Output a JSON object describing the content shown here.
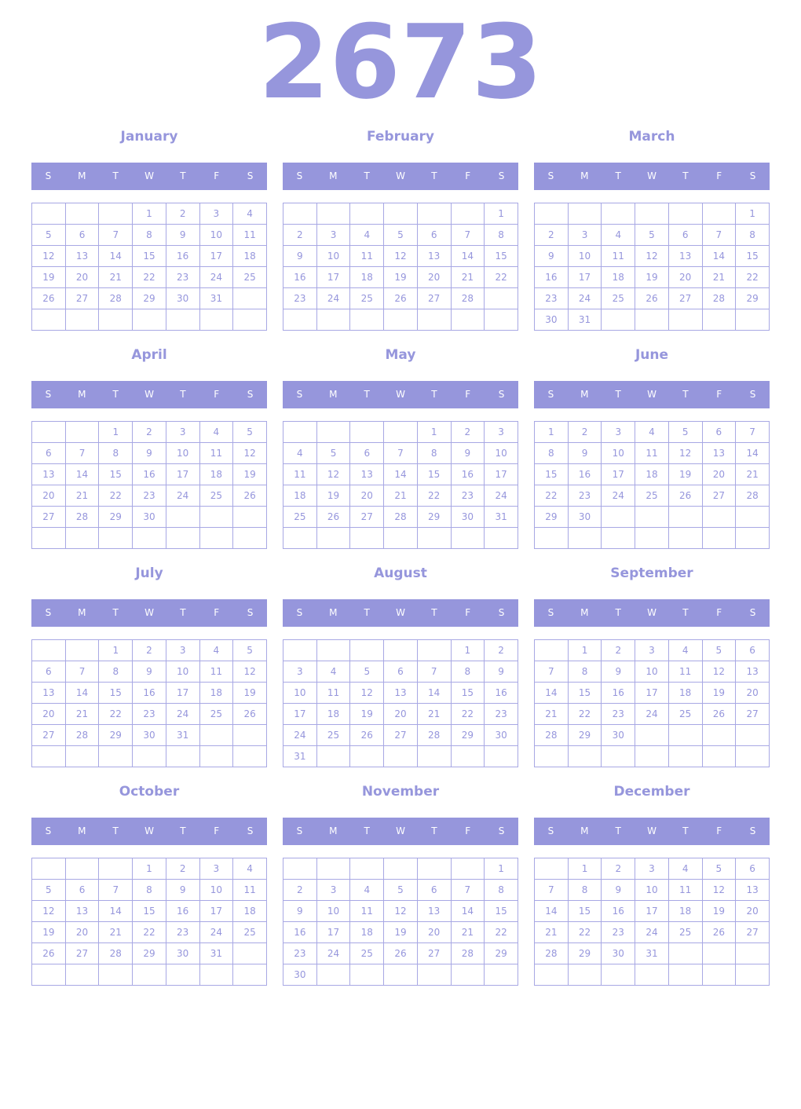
{
  "year": "2673",
  "weekdays": [
    "S",
    "M",
    "T",
    "W",
    "T",
    "F",
    "S"
  ],
  "accent_color": "#9696dc",
  "months": [
    {
      "name": "January",
      "weeks": [
        [
          null,
          null,
          null,
          1,
          2,
          3,
          4
        ],
        [
          5,
          6,
          7,
          8,
          9,
          10,
          11
        ],
        [
          12,
          13,
          14,
          15,
          16,
          17,
          18
        ],
        [
          19,
          20,
          21,
          22,
          23,
          24,
          25
        ],
        [
          26,
          27,
          28,
          29,
          30,
          31,
          null
        ],
        [
          null,
          null,
          null,
          null,
          null,
          null,
          null
        ]
      ]
    },
    {
      "name": "February",
      "weeks": [
        [
          null,
          null,
          null,
          null,
          null,
          null,
          1
        ],
        [
          2,
          3,
          4,
          5,
          6,
          7,
          8
        ],
        [
          9,
          10,
          11,
          12,
          13,
          14,
          15
        ],
        [
          16,
          17,
          18,
          19,
          20,
          21,
          22
        ],
        [
          23,
          24,
          25,
          26,
          27,
          28,
          null
        ],
        [
          null,
          null,
          null,
          null,
          null,
          null,
          null
        ]
      ]
    },
    {
      "name": "March",
      "weeks": [
        [
          null,
          null,
          null,
          null,
          null,
          null,
          1
        ],
        [
          2,
          3,
          4,
          5,
          6,
          7,
          8
        ],
        [
          9,
          10,
          11,
          12,
          13,
          14,
          15
        ],
        [
          16,
          17,
          18,
          19,
          20,
          21,
          22
        ],
        [
          23,
          24,
          25,
          26,
          27,
          28,
          29
        ],
        [
          30,
          31,
          null,
          null,
          null,
          null,
          null
        ]
      ]
    },
    {
      "name": "April",
      "weeks": [
        [
          null,
          null,
          1,
          2,
          3,
          4,
          5
        ],
        [
          6,
          7,
          8,
          9,
          10,
          11,
          12
        ],
        [
          13,
          14,
          15,
          16,
          17,
          18,
          19
        ],
        [
          20,
          21,
          22,
          23,
          24,
          25,
          26
        ],
        [
          27,
          28,
          29,
          30,
          null,
          null,
          null
        ],
        [
          null,
          null,
          null,
          null,
          null,
          null,
          null
        ]
      ]
    },
    {
      "name": "May",
      "weeks": [
        [
          null,
          null,
          null,
          null,
          1,
          2,
          3
        ],
        [
          4,
          5,
          6,
          7,
          8,
          9,
          10
        ],
        [
          11,
          12,
          13,
          14,
          15,
          16,
          17
        ],
        [
          18,
          19,
          20,
          21,
          22,
          23,
          24
        ],
        [
          25,
          26,
          27,
          28,
          29,
          30,
          31
        ],
        [
          null,
          null,
          null,
          null,
          null,
          null,
          null
        ]
      ]
    },
    {
      "name": "June",
      "weeks": [
        [
          1,
          2,
          3,
          4,
          5,
          6,
          7
        ],
        [
          8,
          9,
          10,
          11,
          12,
          13,
          14
        ],
        [
          15,
          16,
          17,
          18,
          19,
          20,
          21
        ],
        [
          22,
          23,
          24,
          25,
          26,
          27,
          28
        ],
        [
          29,
          30,
          null,
          null,
          null,
          null,
          null
        ],
        [
          null,
          null,
          null,
          null,
          null,
          null,
          null
        ]
      ]
    },
    {
      "name": "July",
      "weeks": [
        [
          null,
          null,
          1,
          2,
          3,
          4,
          5
        ],
        [
          6,
          7,
          8,
          9,
          10,
          11,
          12
        ],
        [
          13,
          14,
          15,
          16,
          17,
          18,
          19
        ],
        [
          20,
          21,
          22,
          23,
          24,
          25,
          26
        ],
        [
          27,
          28,
          29,
          30,
          31,
          null,
          null
        ],
        [
          null,
          null,
          null,
          null,
          null,
          null,
          null
        ]
      ]
    },
    {
      "name": "August",
      "weeks": [
        [
          null,
          null,
          null,
          null,
          null,
          1,
          2
        ],
        [
          3,
          4,
          5,
          6,
          7,
          8,
          9
        ],
        [
          10,
          11,
          12,
          13,
          14,
          15,
          16
        ],
        [
          17,
          18,
          19,
          20,
          21,
          22,
          23
        ],
        [
          24,
          25,
          26,
          27,
          28,
          29,
          30
        ],
        [
          31,
          null,
          null,
          null,
          null,
          null,
          null
        ]
      ]
    },
    {
      "name": "September",
      "weeks": [
        [
          null,
          1,
          2,
          3,
          4,
          5,
          6
        ],
        [
          7,
          8,
          9,
          10,
          11,
          12,
          13
        ],
        [
          14,
          15,
          16,
          17,
          18,
          19,
          20
        ],
        [
          21,
          22,
          23,
          24,
          25,
          26,
          27
        ],
        [
          28,
          29,
          30,
          null,
          null,
          null,
          null
        ],
        [
          null,
          null,
          null,
          null,
          null,
          null,
          null
        ]
      ]
    },
    {
      "name": "October",
      "weeks": [
        [
          null,
          null,
          null,
          1,
          2,
          3,
          4
        ],
        [
          5,
          6,
          7,
          8,
          9,
          10,
          11
        ],
        [
          12,
          13,
          14,
          15,
          16,
          17,
          18
        ],
        [
          19,
          20,
          21,
          22,
          23,
          24,
          25
        ],
        [
          26,
          27,
          28,
          29,
          30,
          31,
          null
        ],
        [
          null,
          null,
          null,
          null,
          null,
          null,
          null
        ]
      ]
    },
    {
      "name": "November",
      "weeks": [
        [
          null,
          null,
          null,
          null,
          null,
          null,
          1
        ],
        [
          2,
          3,
          4,
          5,
          6,
          7,
          8
        ],
        [
          9,
          10,
          11,
          12,
          13,
          14,
          15
        ],
        [
          16,
          17,
          18,
          19,
          20,
          21,
          22
        ],
        [
          23,
          24,
          25,
          26,
          27,
          28,
          29
        ],
        [
          30,
          null,
          null,
          null,
          null,
          null,
          null
        ]
      ]
    },
    {
      "name": "December",
      "weeks": [
        [
          null,
          1,
          2,
          3,
          4,
          5,
          6
        ],
        [
          7,
          8,
          9,
          10,
          11,
          12,
          13
        ],
        [
          14,
          15,
          16,
          17,
          18,
          19,
          20
        ],
        [
          21,
          22,
          23,
          24,
          25,
          26,
          27
        ],
        [
          28,
          29,
          30,
          31,
          null,
          null,
          null
        ],
        [
          null,
          null,
          null,
          null,
          null,
          null,
          null
        ]
      ]
    }
  ]
}
